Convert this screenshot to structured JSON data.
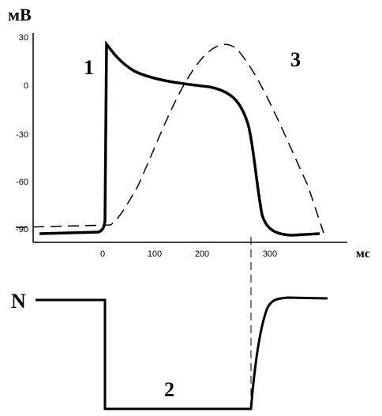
{
  "y_axis": {
    "label": "мВ",
    "ticks": [
      "30",
      "0",
      "-30",
      "-60",
      "-90"
    ]
  },
  "x_axis": {
    "label": "мс",
    "ticks": [
      "0",
      "100",
      "200",
      "300"
    ]
  },
  "curves": {
    "action_potential": "1",
    "excitability": "2",
    "contraction": "3"
  },
  "level_label": "N"
}
